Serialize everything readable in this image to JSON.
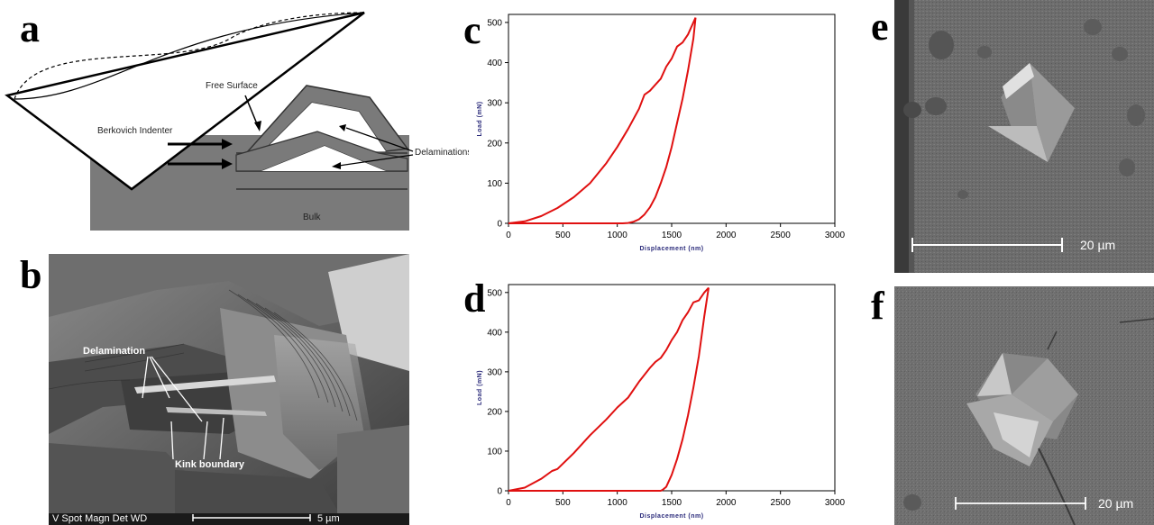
{
  "panels": {
    "a": {
      "letter": "a",
      "labels": {
        "indenter": "Berkovich Indenter",
        "free_surface": "Free Surface",
        "delaminations": "Delaminations",
        "bulk": "Bulk"
      }
    },
    "b": {
      "letter": "b",
      "labels": {
        "delamination": "Delamination",
        "kink_boundary": "Kink boundary"
      },
      "footer": {
        "left": "V    Spot Magn     Det   WD",
        "scale": "5 µm"
      }
    },
    "c": {
      "letter": "c"
    },
    "d": {
      "letter": "d"
    },
    "e": {
      "letter": "e",
      "scale": "20 µm"
    },
    "f": {
      "letter": "f",
      "scale": "20 µm"
    }
  },
  "colors": {
    "curve": "#e01010",
    "axis_title": "#2a2a7a"
  },
  "chart_data": [
    {
      "type": "line",
      "panel": "c",
      "xlabel": "Displacement (nm)",
      "ylabel": "Load (mN)",
      "xlim": [
        0,
        3000
      ],
      "ylim": [
        0,
        520
      ],
      "xticks": [
        0,
        500,
        1000,
        1500,
        2000,
        2500,
        3000
      ],
      "yticks": [
        0,
        100,
        200,
        300,
        400,
        500
      ],
      "series": [
        {
          "values_x": [
            0,
            150,
            300,
            450,
            600,
            750,
            900,
            1000,
            1100,
            1200,
            1250,
            1300,
            1350,
            1400,
            1450,
            1500,
            1550,
            1600,
            1650,
            1700,
            1720
          ],
          "values_y": [
            0,
            5,
            18,
            38,
            65,
            100,
            150,
            190,
            235,
            285,
            320,
            330,
            345,
            360,
            390,
            410,
            440,
            450,
            470,
            500,
            512
          ]
        },
        {
          "values_x": [
            1720,
            1700,
            1650,
            1600,
            1550,
            1500,
            1450,
            1400,
            1350,
            1300,
            1250,
            1200,
            1150,
            1100,
            1050,
            1000,
            500,
            0
          ],
          "values_y": [
            512,
            460,
            380,
            310,
            250,
            190,
            140,
            100,
            65,
            40,
            22,
            10,
            4,
            1,
            0,
            0,
            0,
            0
          ]
        }
      ]
    },
    {
      "type": "line",
      "panel": "d",
      "xlabel": "Displacement (nm)",
      "ylabel": "Load (mN)",
      "xlim": [
        0,
        3000
      ],
      "ylim": [
        0,
        520
      ],
      "xticks": [
        0,
        500,
        1000,
        1500,
        2000,
        2500,
        3000
      ],
      "yticks": [
        0,
        100,
        200,
        300,
        400,
        500
      ],
      "series": [
        {
          "values_x": [
            0,
            150,
            300,
            400,
            450,
            600,
            750,
            900,
            1000,
            1100,
            1200,
            1300,
            1350,
            1400,
            1450,
            1500,
            1550,
            1600,
            1650,
            1700,
            1750,
            1800,
            1840
          ],
          "values_y": [
            0,
            8,
            30,
            50,
            55,
            95,
            140,
            180,
            210,
            235,
            275,
            310,
            325,
            335,
            355,
            380,
            400,
            430,
            450,
            475,
            480,
            500,
            512
          ]
        },
        {
          "values_x": [
            1840,
            1800,
            1750,
            1700,
            1650,
            1600,
            1550,
            1500,
            1450,
            1420,
            1400,
            1000,
            500,
            0
          ],
          "values_y": [
            512,
            440,
            340,
            260,
            190,
            130,
            80,
            40,
            10,
            3,
            0,
            0,
            0,
            0
          ]
        }
      ]
    }
  ]
}
